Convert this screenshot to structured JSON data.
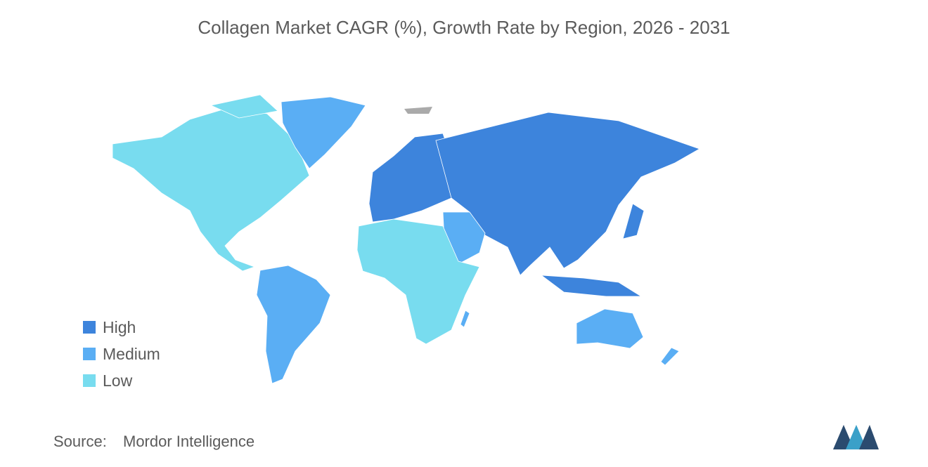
{
  "title": "Collagen Market CAGR (%), Growth Rate by Region, 2026 - 2031",
  "legend": [
    {
      "label": "High",
      "color": "#3d84dc"
    },
    {
      "label": "Medium",
      "color": "#5aaef4"
    },
    {
      "label": "Low",
      "color": "#78dcef"
    }
  ],
  "source": {
    "label": "Source:",
    "text": "Mordor Intelligence"
  }
}
